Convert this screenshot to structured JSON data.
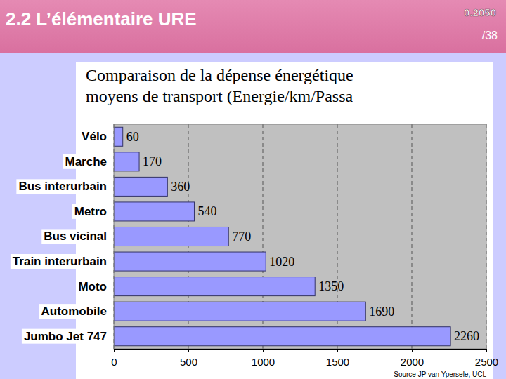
{
  "slide": {
    "heading": "2.2 L’élémentaire URE",
    "code": "0.2050",
    "page": "/38"
  },
  "chart_data": {
    "type": "bar",
    "orientation": "horizontal",
    "title": "Comparaison de la dépense énergétique\nmoyens de transport (Energie/km/Passa",
    "categories": [
      "Vélo",
      "Marche",
      "Bus interurbain",
      "Metro",
      "Bus vicinal",
      "Train interurbain",
      "Moto",
      "Automobile",
      "Jumbo Jet 747"
    ],
    "values": [
      60,
      170,
      360,
      540,
      770,
      1020,
      1350,
      1690,
      2260
    ],
    "color": "#9999ff",
    "xlim": [
      0,
      2500
    ],
    "xticks": [
      0,
      500,
      1000,
      1500,
      2000,
      2500
    ],
    "grid": true,
    "data_labels": true,
    "annotation": "Source JP van Ypersele, UCL"
  }
}
